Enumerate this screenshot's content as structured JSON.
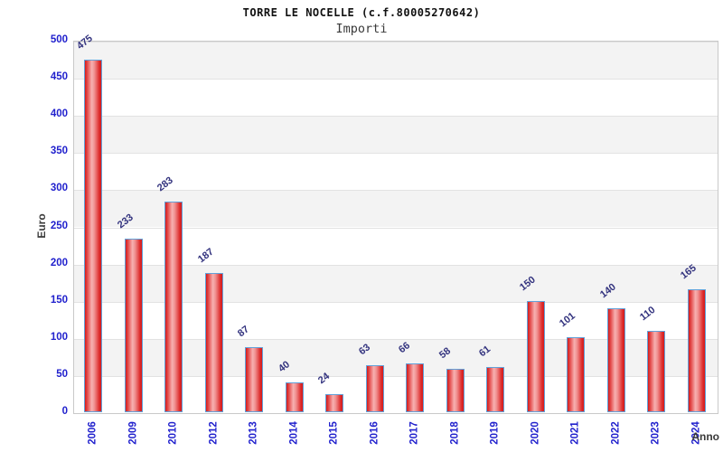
{
  "chart_data": {
    "type": "bar",
    "title": "TORRE LE NOCELLE (c.f.80005270642)",
    "subtitle": "Importi",
    "xlabel": "Anno",
    "ylabel": "Euro",
    "categories": [
      "2006",
      "2009",
      "2010",
      "2012",
      "2013",
      "2014",
      "2015",
      "2016",
      "2017",
      "2018",
      "2019",
      "2020",
      "2021",
      "2022",
      "2023",
      "2024"
    ],
    "values": [
      475,
      233,
      283,
      187,
      87,
      40,
      24,
      63,
      66,
      58,
      61,
      150,
      101,
      140,
      110,
      165
    ],
    "ylim": [
      0,
      500
    ],
    "yticks": [
      0,
      50,
      100,
      150,
      200,
      250,
      300,
      350,
      400,
      450,
      500
    ],
    "grid": "horizontal-alternating-bands",
    "legend": "none",
    "colors": {
      "bar_fill_edge": "#d31c1c",
      "bar_fill_center": "#f7b1b1",
      "bar_border": "#62a1d9",
      "axis_tick_label": "#2121cd",
      "value_label": "#32327e",
      "axis_title": "#3a3a3a",
      "band_gray": "#f3f3f3",
      "grid_line": "#e2e2e2",
      "plot_border": "#c9c9c9"
    }
  }
}
